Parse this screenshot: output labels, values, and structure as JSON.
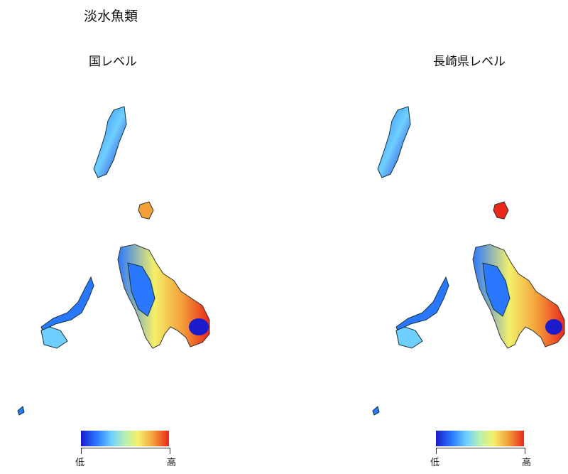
{
  "title": "淡水魚類",
  "panels": [
    {
      "label": "国レベル"
    },
    {
      "label": "長崎県レベル"
    }
  ],
  "legend": {
    "low": "低",
    "high": "高",
    "colors": [
      "#1b1bcc",
      "#2a78ff",
      "#6fd0ff",
      "#b8f0b0",
      "#f4f06a",
      "#f4a03a",
      "#e8281a"
    ]
  }
}
